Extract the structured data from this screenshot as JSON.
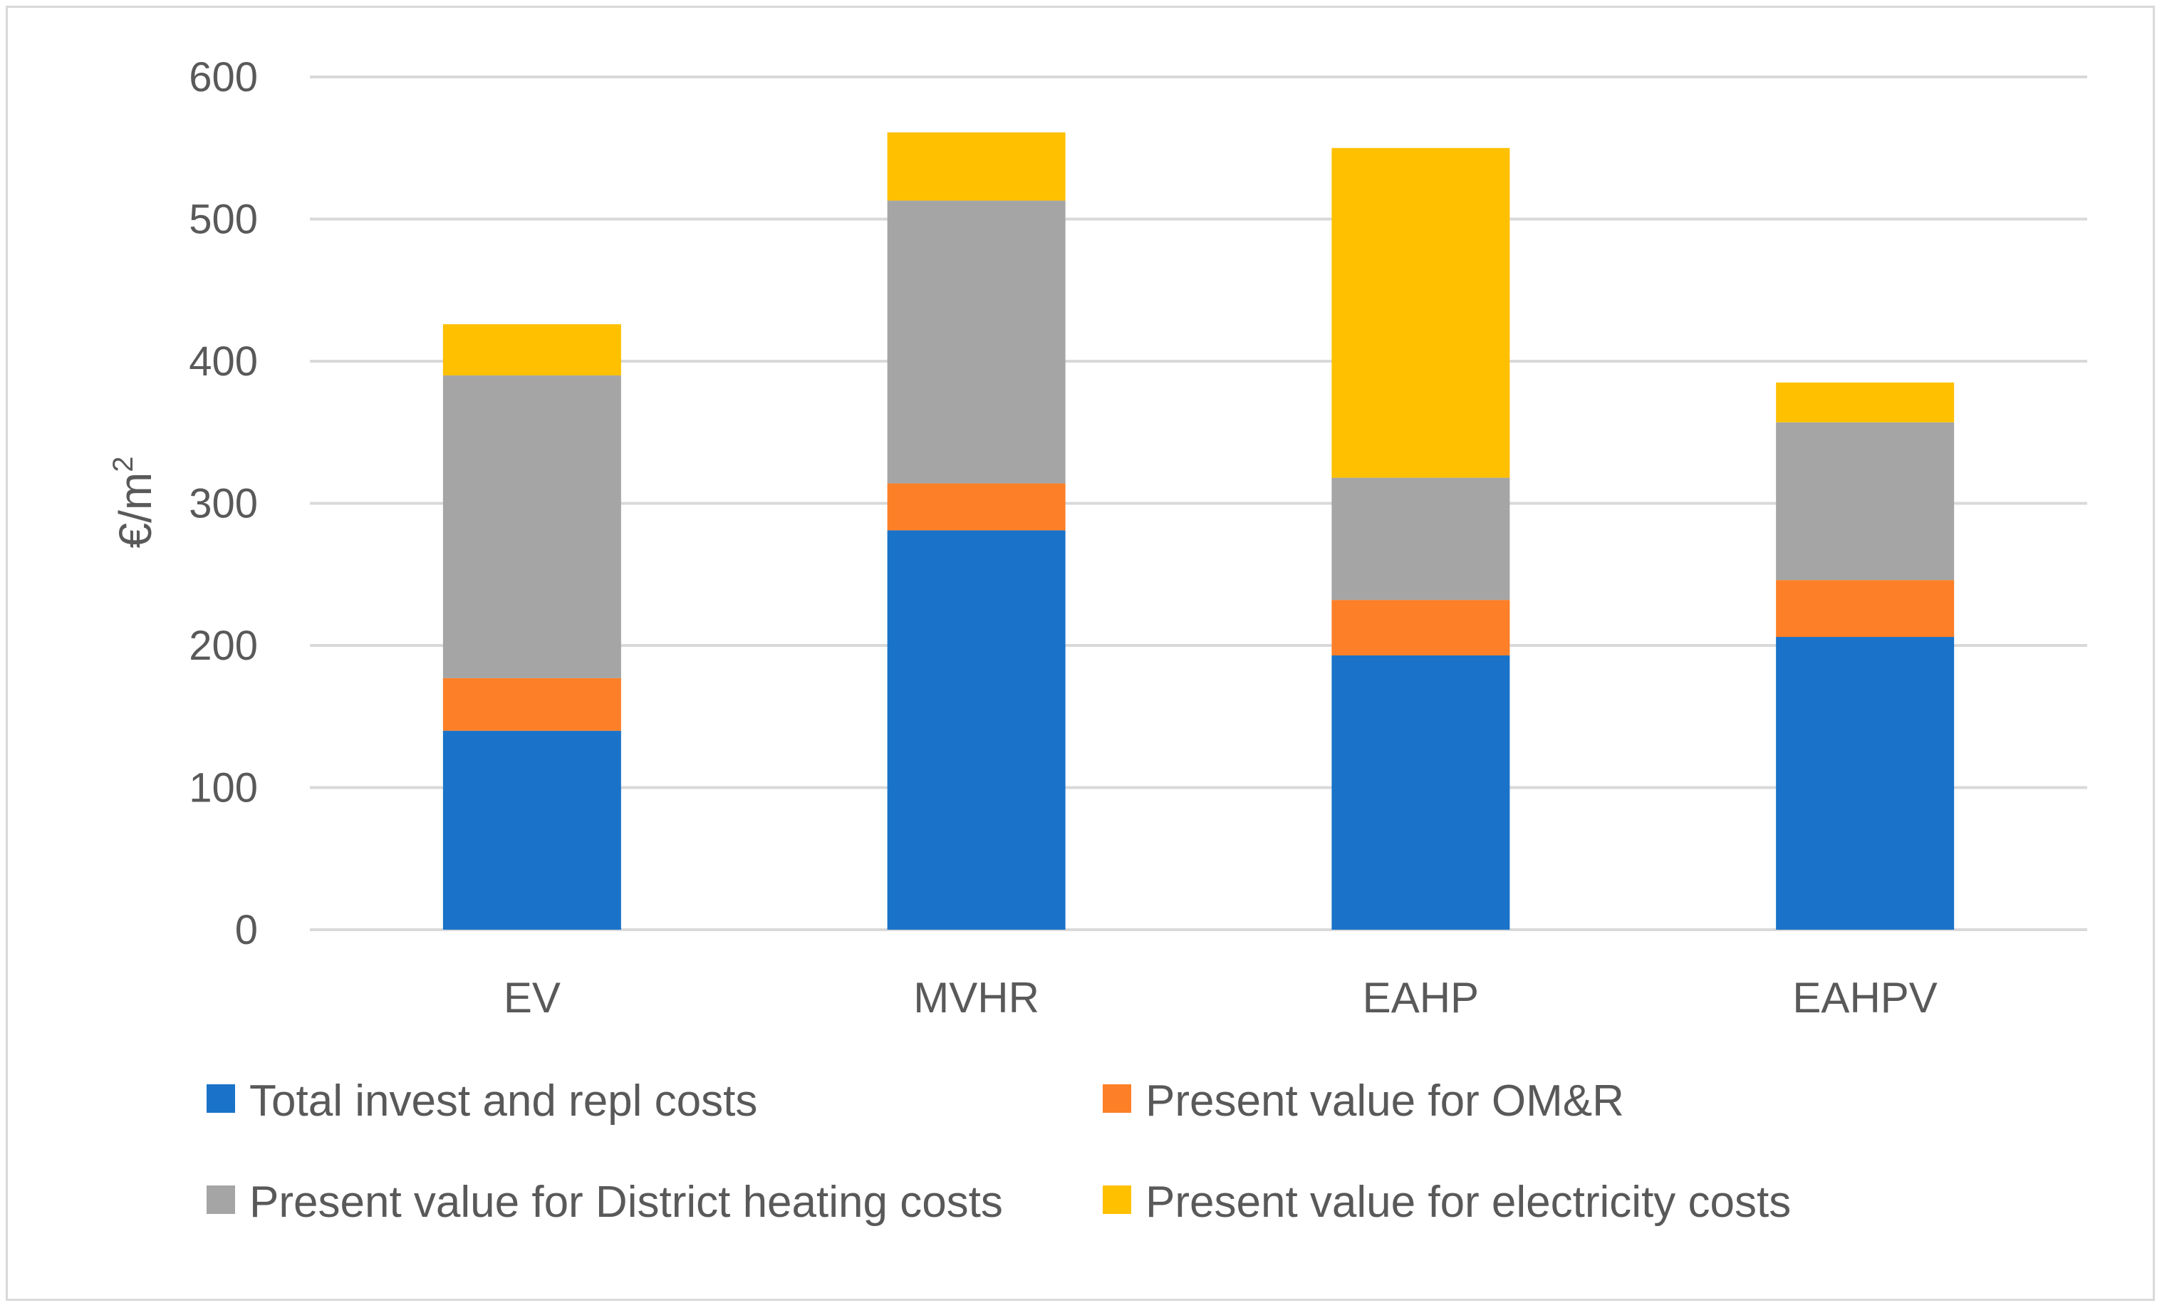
{
  "chart_data": {
    "type": "bar",
    "stacked": true,
    "title": "",
    "xlabel": "",
    "ylabel": "€/m",
    "ylabel_superscript": "2",
    "ylim": [
      0,
      600
    ],
    "yticks": [
      0,
      100,
      200,
      300,
      400,
      500,
      600
    ],
    "grid": true,
    "legend_position": "bottom",
    "categories": [
      "EV",
      "MVHR",
      "EAHP",
      "EAHPV"
    ],
    "series": [
      {
        "name": "Total invest and repl costs",
        "color": "#1a73c8",
        "values": [
          140,
          281,
          193,
          206
        ]
      },
      {
        "name": "Present value for OM&R",
        "color": "#fd7f27",
        "values": [
          37,
          33,
          39,
          40
        ]
      },
      {
        "name": "Present value for District heating costs",
        "color": "#a5a5a5",
        "values": [
          213,
          199,
          86,
          111
        ]
      },
      {
        "name": "Present value for electricity costs",
        "color": "#ffc000",
        "values": [
          36,
          48,
          232,
          28
        ]
      }
    ]
  }
}
